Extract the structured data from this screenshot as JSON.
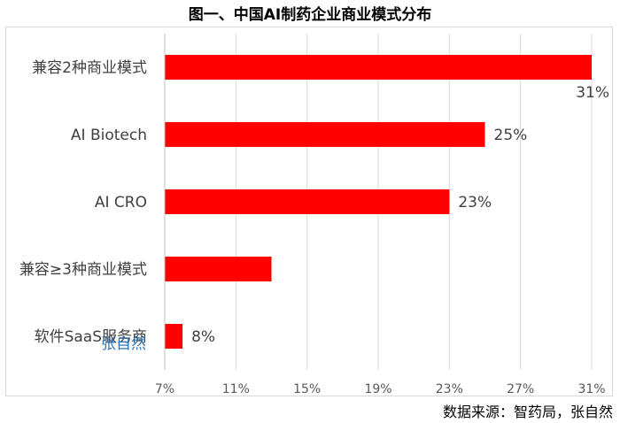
{
  "title": "图一、中国AI制药企业商业模式分布",
  "source": "数据来源：智药局，张自然",
  "watermark": "张自然",
  "chart_data": {
    "type": "bar",
    "orientation": "horizontal",
    "categories": [
      "兼容2种商业模式",
      "AI Biotech",
      "AI CRO",
      "兼容≥3种商业模式",
      "软件SaaS服务商"
    ],
    "values": [
      31,
      25,
      23,
      13,
      8
    ],
    "value_labels": [
      "31%",
      "25%",
      "23%",
      "",
      "8%"
    ],
    "x_ticks": [
      "7%",
      "11%",
      "15%",
      "19%",
      "23%",
      "27%",
      "31%"
    ],
    "xlim": [
      7,
      31
    ],
    "bar_color": "#ff0000",
    "grid": "vertical"
  }
}
